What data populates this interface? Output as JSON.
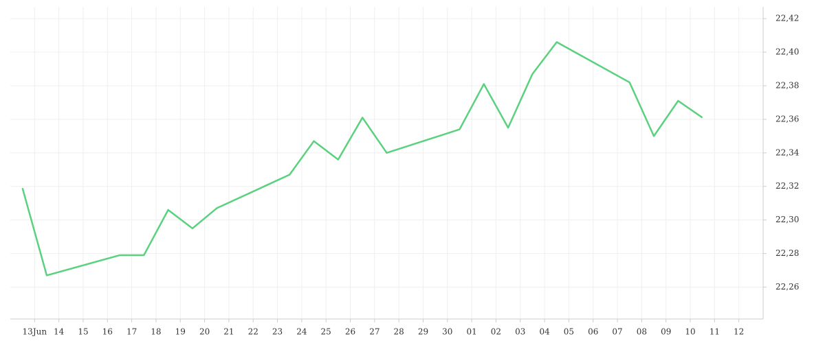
{
  "chart_data": {
    "type": "line",
    "x": [
      12.5,
      13.5,
      16.5,
      17.5,
      18.5,
      19.5,
      20.5,
      23.5,
      24.5,
      25.5,
      26.5,
      27.5,
      30.5,
      31.5,
      32.5,
      33.5,
      34.5,
      37.5,
      38.5,
      39.5,
      40.5
    ],
    "series": [
      {
        "color": "#5ad17e",
        "values": [
          22.319,
          22.267,
          22.279,
          22.279,
          22.306,
          22.295,
          22.307,
          22.327,
          22.347,
          22.336,
          22.361,
          22.34,
          22.354,
          22.381,
          22.355,
          22.387,
          22.406,
          22.382,
          22.35,
          22.371,
          22.361
        ]
      }
    ],
    "xlim": [
      12,
      43
    ],
    "xticks": [
      {
        "value": 13,
        "label": "13Jun"
      },
      14,
      15,
      16,
      17,
      18,
      19,
      20,
      21,
      22,
      23,
      24,
      25,
      26,
      27,
      28,
      29,
      30,
      {
        "value": 31,
        "label": "01"
      },
      {
        "value": 32,
        "label": "02"
      },
      {
        "value": 33,
        "label": "03"
      },
      {
        "value": 34,
        "label": "04"
      },
      {
        "value": 35,
        "label": "05"
      },
      {
        "value": 36,
        "label": "06"
      },
      {
        "value": 37,
        "label": "07"
      },
      {
        "value": 38,
        "label": "08"
      },
      {
        "value": 39,
        "label": "09"
      },
      {
        "value": 40,
        "label": "10"
      },
      {
        "value": 41,
        "label": "11"
      },
      {
        "value": 42,
        "label": "12"
      }
    ],
    "ylim": [
      22.241,
      22.427
    ],
    "yticks": [
      {
        "value": 22.26,
        "label": "22,26"
      },
      {
        "value": 22.28,
        "label": "22,28"
      },
      {
        "value": 22.3,
        "label": "22,30"
      },
      {
        "value": 22.32,
        "label": "22,32"
      },
      {
        "value": 22.34,
        "label": "22,34"
      },
      {
        "value": 22.36,
        "label": "22,36"
      },
      {
        "value": 22.38,
        "label": "22,38"
      },
      {
        "value": 22.4,
        "label": "22,40"
      },
      {
        "value": 22.42,
        "label": "22,42"
      }
    ],
    "grid": true
  }
}
